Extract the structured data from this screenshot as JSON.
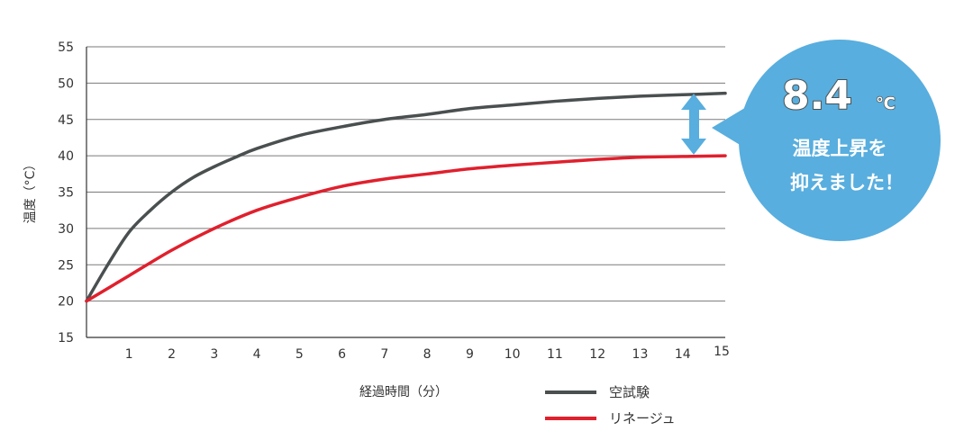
{
  "chart_data": {
    "type": "line",
    "xlabel": "経過時間（分）",
    "ylabel": "温度（°C）",
    "xlim": [
      0,
      15
    ],
    "ylim": [
      15,
      55
    ],
    "x_ticks": [
      1,
      2,
      3,
      4,
      5,
      6,
      7,
      8,
      9,
      10,
      11,
      12,
      13,
      14,
      15
    ],
    "y_ticks": [
      15,
      20,
      25,
      30,
      35,
      40,
      45,
      50,
      55
    ],
    "grid": true,
    "legend_placement": "bottom-right",
    "series": [
      {
        "name": "空試験",
        "color": "#4a4f50",
        "x": [
          0,
          0.5,
          1,
          1.5,
          2,
          2.5,
          3,
          3.5,
          4,
          5,
          6,
          7,
          8,
          9,
          10,
          11,
          12,
          13,
          14,
          15
        ],
        "y": [
          20,
          25,
          29.5,
          32.5,
          35,
          37,
          38.5,
          39.8,
          41,
          42.8,
          44,
          45,
          45.7,
          46.5,
          47,
          47.5,
          47.9,
          48.2,
          48.4,
          48.6
        ]
      },
      {
        "name": "リネージュ",
        "color": "#e0202d",
        "x": [
          0,
          1,
          2,
          3,
          4,
          5,
          6,
          7,
          8,
          9,
          10,
          11,
          12,
          13,
          14,
          15
        ],
        "y": [
          20,
          23.5,
          27,
          30,
          32.5,
          34.3,
          35.8,
          36.8,
          37.5,
          38.2,
          38.7,
          39.1,
          39.5,
          39.8,
          39.9,
          40
        ]
      }
    ]
  },
  "callout": {
    "value": "8.4",
    "unit": "℃",
    "line1": "温度上昇を",
    "line2": "抑えました！",
    "color": "#58aede"
  }
}
